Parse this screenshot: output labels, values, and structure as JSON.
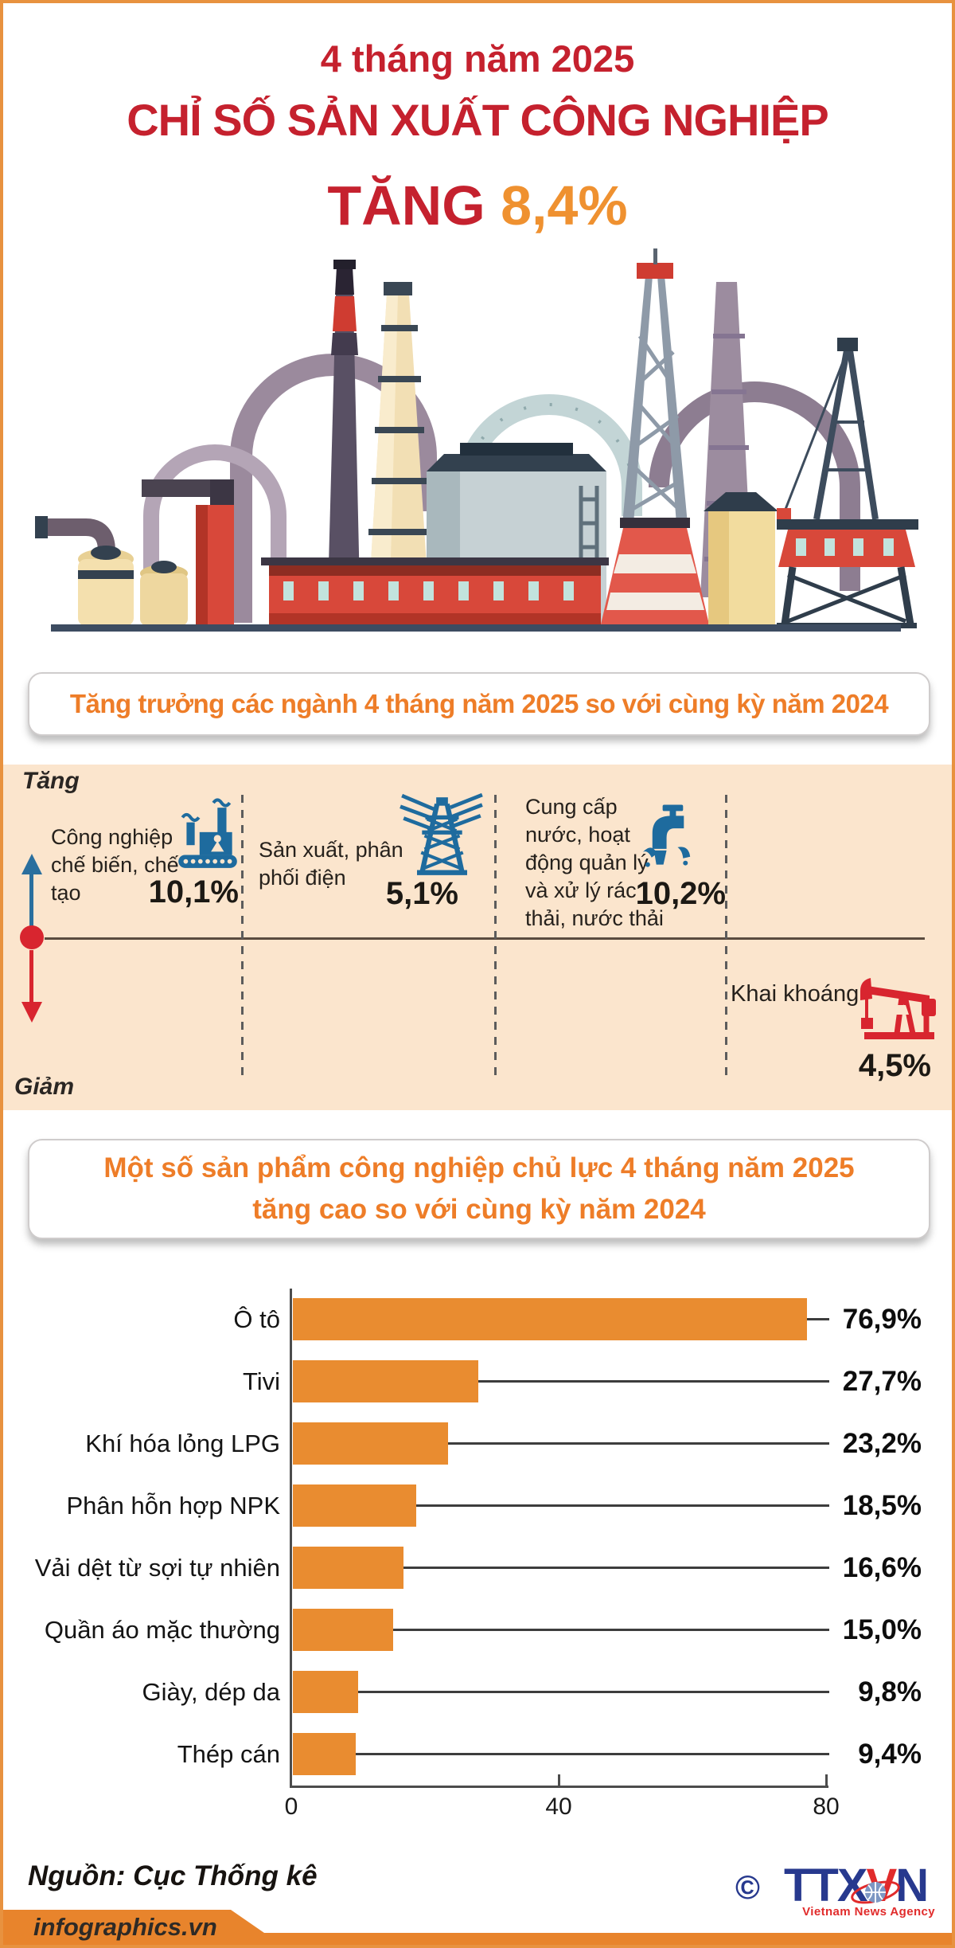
{
  "header": {
    "subtitle": "4 tháng năm 2025",
    "title": "CHỈ SỐ SẢN XUẤT CÔNG NGHIỆP",
    "growth_prefix": "TĂNG",
    "growth_value": "8,4%"
  },
  "section1": {
    "banner": "Tăng trưởng các ngành 4 tháng năm 2025 so với cùng kỳ năm 2024",
    "axis_up_label": "Tăng",
    "axis_down_label": "Giảm",
    "items": [
      {
        "label": "Công nghiệp chế biến, chế tạo",
        "value": "10,1%",
        "icon": "factory-icon",
        "direction": "up"
      },
      {
        "label": "Sản xuất, phân phối điện",
        "value": "5,1%",
        "icon": "power-tower-icon",
        "direction": "up"
      },
      {
        "label": "Cung cấp nước, hoạt động quản lý và xử lý rác thải, nước thải",
        "value": "10,2%",
        "icon": "water-tap-icon",
        "direction": "up"
      },
      {
        "label": "Khai khoáng",
        "value": "4,5%",
        "icon": "oil-pump-icon",
        "direction": "down"
      }
    ]
  },
  "section2": {
    "banner_line1": "Một số sản phẩm công nghiệp chủ lực 4 tháng năm 2025",
    "banner_line2": "tăng cao so với cùng kỳ năm 2024"
  },
  "chart_data": {
    "type": "bar",
    "orientation": "horizontal",
    "title": "Một số sản phẩm công nghiệp chủ lực 4 tháng năm 2025 tăng cao so với cùng kỳ năm 2024",
    "categories": [
      "Ô tô",
      "Tivi",
      "Khí hóa lỏng LPG",
      "Phân hỗn hợp NPK",
      "Vải dệt từ sợi tự nhiên",
      "Quần áo mặc thường",
      "Giày, dép da",
      "Thép cán"
    ],
    "values": [
      76.9,
      27.7,
      23.2,
      18.5,
      16.6,
      15.0,
      9.8,
      9.4
    ],
    "value_labels": [
      "76,9%",
      "27,7%",
      "23,2%",
      "18,5%",
      "16,6%",
      "15,0%",
      "9,8%",
      "9,4%"
    ],
    "unit": "%",
    "xlim": [
      0,
      80
    ],
    "x_ticks": [
      0,
      40,
      80
    ],
    "grid": false,
    "legend": "none",
    "bar_color": "#e98c30"
  },
  "footer": {
    "source": "Nguồn: Cục Thống kê",
    "copyright": "©",
    "logo_ttx": "TTX",
    "logo_v": "V",
    "logo_n": "N",
    "logo_sub": "Vietnam News Agency",
    "site": "infographics.vn"
  },
  "colors": {
    "title_red": "#c5212e",
    "accent_orange": "#ee7d28",
    "growth_orange": "#ef9130",
    "bar_orange": "#e98c30",
    "peach_bg": "#fbe5cd",
    "icon_blue": "#1e6b9e",
    "icon_red": "#d8252f",
    "band_orange": "#e8842c",
    "logo_blue": "#27398e",
    "logo_red": "#e12b2b",
    "frame_orange": "#e8923f"
  }
}
